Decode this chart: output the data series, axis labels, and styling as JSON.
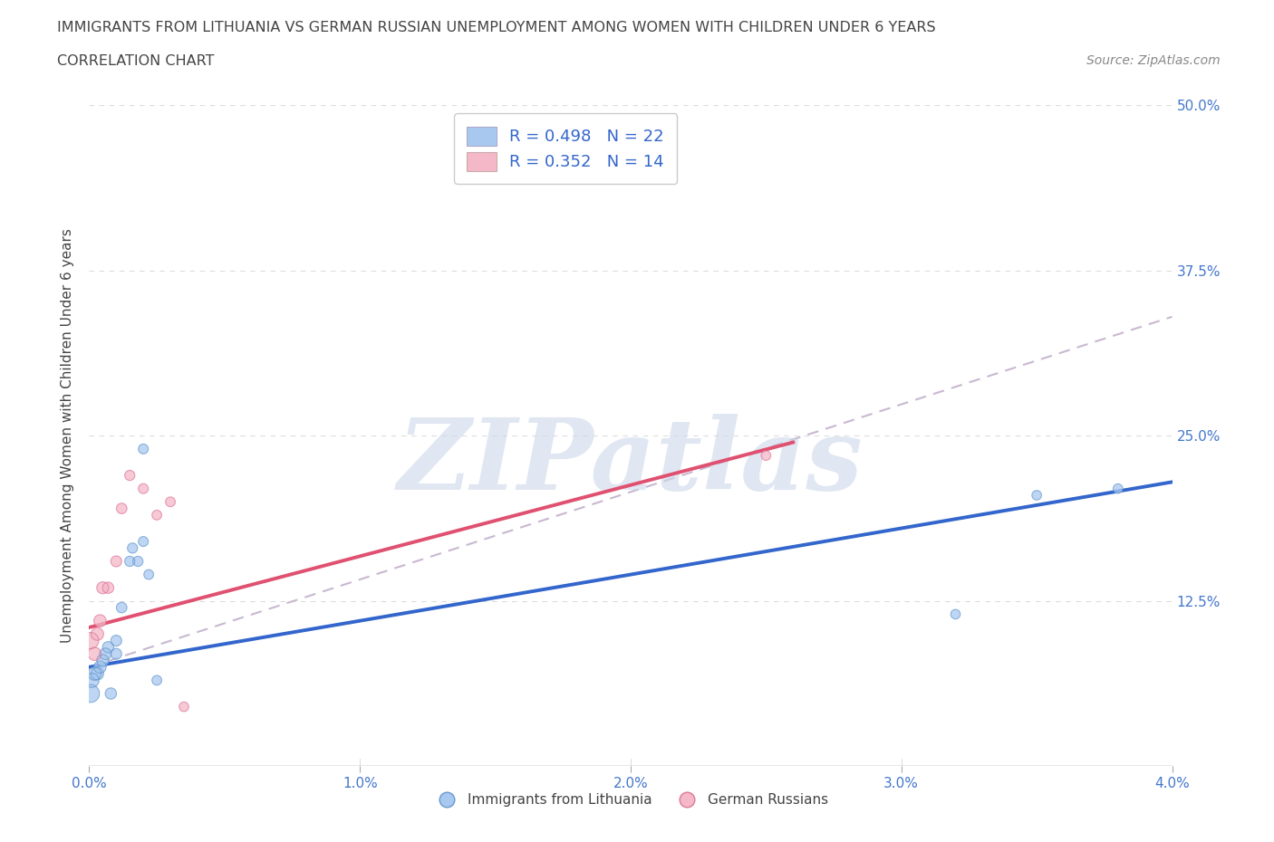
{
  "title": "IMMIGRANTS FROM LITHUANIA VS GERMAN RUSSIAN UNEMPLOYMENT AMONG WOMEN WITH CHILDREN UNDER 6 YEARS",
  "subtitle": "CORRELATION CHART",
  "source": "Source: ZipAtlas.com",
  "ylabel": "Unemployment Among Women with Children Under 6 years",
  "legend1_label": "R = 0.498   N = 22",
  "legend2_label": "R = 0.352   N = 14",
  "blue_color": "#a8c8f0",
  "pink_color": "#f4b8c8",
  "blue_line_color": "#3366cc",
  "pink_line_color": "#e05070",
  "dashed_line_color": "#c8b8d0",
  "axis_label_color": "#4477cc",
  "text_color": "#444444",
  "legend_text_color": "#3366cc",
  "watermark_color": "#ccd8ea",
  "watermark_text": "ZIPatlas",
  "xmin": 0.0,
  "xmax": 0.04,
  "ymin": 0.0,
  "ymax": 0.5,
  "xticks": [
    0.0,
    0.01,
    0.02,
    0.03,
    0.04
  ],
  "yticks": [
    0.0,
    0.125,
    0.25,
    0.375,
    0.5
  ],
  "xtick_labels": [
    "0.0%",
    "1.0%",
    "2.0%",
    "3.0%",
    "4.0%"
  ],
  "ytick_labels": [
    "",
    "12.5%",
    "25.0%",
    "37.5%",
    "50.0%"
  ],
  "blue_x": [
    5e-05,
    0.0001,
    0.0002,
    0.0003,
    0.0004,
    0.0005,
    0.0006,
    0.0007,
    0.0008,
    0.001,
    0.001,
    0.0012,
    0.0015,
    0.0016,
    0.0018,
    0.002,
    0.002,
    0.0022,
    0.0025,
    0.032,
    0.035,
    0.038
  ],
  "blue_y": [
    0.055,
    0.065,
    0.07,
    0.07,
    0.075,
    0.08,
    0.085,
    0.09,
    0.055,
    0.085,
    0.095,
    0.12,
    0.155,
    0.165,
    0.155,
    0.17,
    0.24,
    0.145,
    0.065,
    0.115,
    0.205,
    0.21
  ],
  "blue_sizes": [
    200,
    130,
    110,
    100,
    95,
    90,
    85,
    80,
    80,
    75,
    75,
    70,
    65,
    65,
    65,
    62,
    62,
    60,
    60,
    58,
    58,
    58
  ],
  "pink_x": [
    5e-05,
    0.0002,
    0.0003,
    0.0004,
    0.0005,
    0.0007,
    0.001,
    0.0012,
    0.0015,
    0.002,
    0.0025,
    0.003,
    0.0035,
    0.025
  ],
  "pink_y": [
    0.095,
    0.085,
    0.1,
    0.11,
    0.135,
    0.135,
    0.155,
    0.195,
    0.22,
    0.21,
    0.19,
    0.2,
    0.045,
    0.235
  ],
  "pink_sizes": [
    170,
    110,
    100,
    95,
    90,
    80,
    75,
    70,
    65,
    62,
    60,
    60,
    58,
    58
  ],
  "blue_trendline_x": [
    0.0,
    0.04
  ],
  "blue_trendline_y": [
    0.075,
    0.215
  ],
  "pink_trendline_x": [
    0.0,
    0.026
  ],
  "pink_trendline_y": [
    0.105,
    0.245
  ],
  "dashed_trendline_x": [
    0.0,
    0.04
  ],
  "dashed_trendline_y": [
    0.075,
    0.34
  ],
  "grid_color": "#dddddd",
  "background_color": "#ffffff"
}
